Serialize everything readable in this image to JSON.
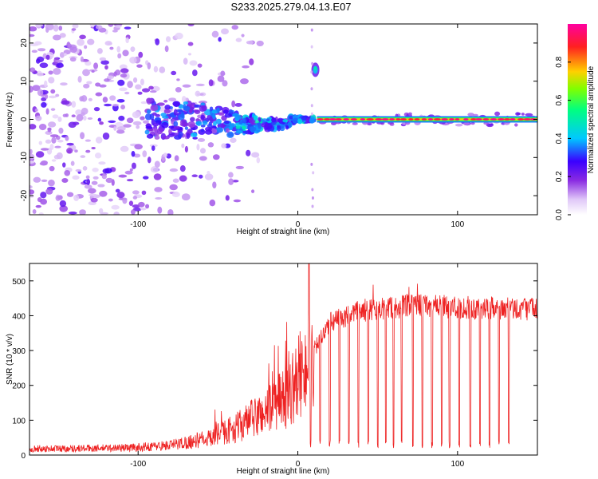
{
  "figure_title": "S233.2025.279.04.13.E07",
  "chart_data": [
    {
      "type": "heatmap",
      "title": "S233.2025.279.04.13.E07",
      "xlabel": "Height of straight line (km)",
      "ylabel": "Frequency (Hz)",
      "xlim": [
        -168,
        150
      ],
      "ylim": [
        -25,
        25
      ],
      "x_ticks": [
        -100,
        0,
        100
      ],
      "y_ticks": [
        -20,
        -10,
        0,
        10,
        20
      ],
      "colorbar": {
        "label": "Normalized spectral amplitude",
        "range": [
          0,
          1
        ],
        "ticks": [
          "0.0",
          "0.2",
          "0.4",
          "0.6",
          "0.8"
        ],
        "colormap": [
          "#ffffff",
          "#e0c8f8",
          "#8a2be2",
          "#3a00ff",
          "#00c8ff",
          "#00ff80",
          "#80ff00",
          "#ffd000",
          "#ff2020",
          "#ff00a0"
        ]
      },
      "features": [
        {
          "name": "broad scattered noise",
          "x_range": [
            -168,
            -20
          ],
          "frequency_range": [
            -25,
            25
          ],
          "amplitude": 0.15
        },
        {
          "name": "converging band",
          "x_range": [
            -90,
            10
          ],
          "frequency_center": 0,
          "amplitude": 0.35
        },
        {
          "name": "narrow carrier line",
          "x_range": [
            12,
            150
          ],
          "frequency": 0,
          "amplitude": 0.95
        },
        {
          "name": "secondary tone",
          "x": 11,
          "frequency": 13,
          "amplitude": 0.4
        }
      ]
    },
    {
      "type": "line",
      "xlabel": "Height of straight line (km)",
      "ylabel": "SNR (10 * v/v)",
      "xlim": [
        -168,
        150
      ],
      "ylim": [
        0,
        550
      ],
      "x_ticks": [
        -100,
        0,
        100
      ],
      "y_ticks": [
        0,
        100,
        200,
        300,
        400,
        500
      ],
      "series": [
        {
          "name": "SNR",
          "color": "#ee2222",
          "baseline_profile": {
            "x": [
              -168,
              -120,
              -100,
              -80,
              -60,
              -40,
              -20,
              -5,
              0,
              10,
              20,
              40,
              60,
              80,
              100,
              120,
              150
            ],
            "y": [
              18,
              20,
              22,
              28,
              45,
              75,
              125,
              175,
              220,
              300,
              380,
              415,
              425,
              430,
              425,
              420,
              420
            ]
          },
          "dropout_heights_km": [
            8,
            14,
            20,
            26,
            32,
            38,
            44,
            50,
            55,
            60,
            65,
            72,
            78,
            84,
            90,
            95,
            101,
            108,
            114,
            120,
            126,
            132
          ],
          "dropout_min": 20
        }
      ]
    }
  ]
}
